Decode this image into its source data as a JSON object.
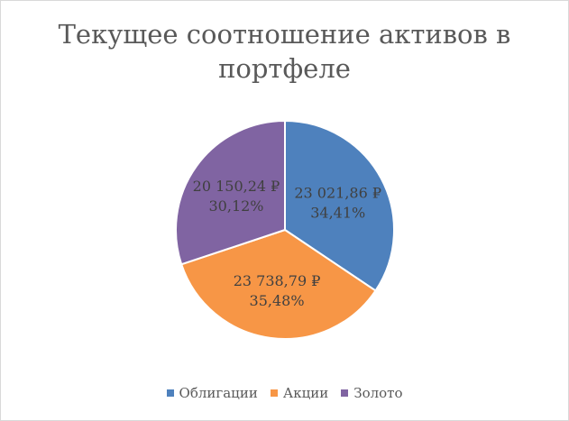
{
  "chart_data": {
    "type": "pie",
    "title": "Текущее соотношение активов в портфеле",
    "legend_position": "bottom",
    "slices": [
      {
        "name": "Облигации",
        "value": 23021.86,
        "value_label": "23 021,86 ₽",
        "percent_label": "34,41%",
        "color": "#4e81bd"
      },
      {
        "name": "Акции",
        "value": 23738.79,
        "value_label": "23 738,79 ₽",
        "percent_label": "35,48%",
        "color": "#f79646"
      },
      {
        "name": "Золото",
        "value": 20150.24,
        "value_label": "20 150,24 ₽",
        "percent_label": "30,12%",
        "color": "#8064a2"
      }
    ]
  }
}
